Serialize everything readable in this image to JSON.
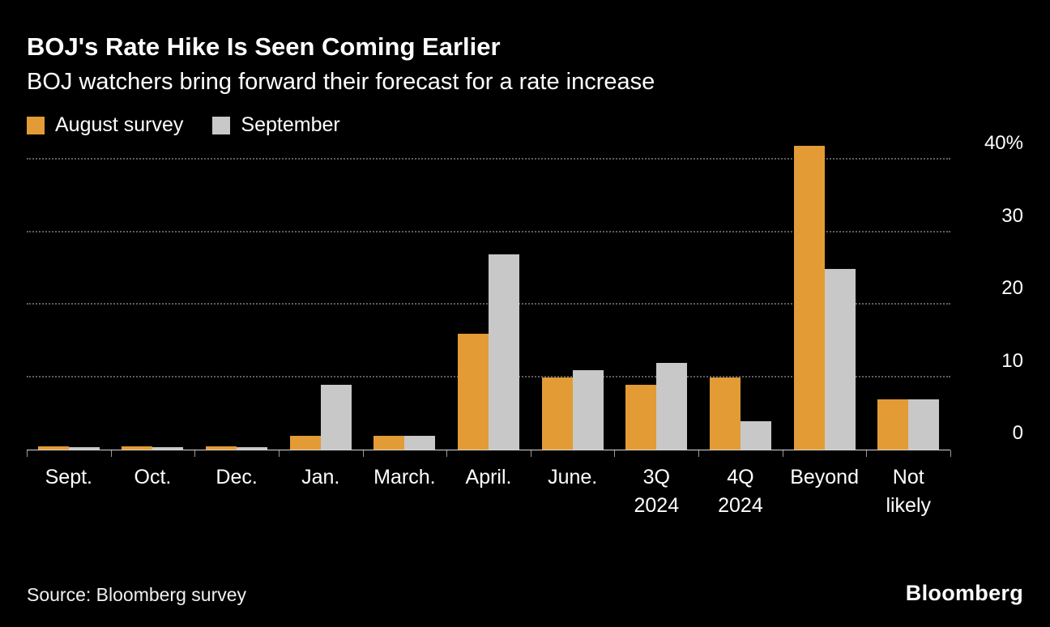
{
  "header": {
    "title": "BOJ's Rate Hike Is Seen Coming Earlier",
    "subtitle": "BOJ watchers bring forward their forecast for a rate increase"
  },
  "legend": [
    {
      "label": "August survey",
      "color": "#E39B35"
    },
    {
      "label": "September",
      "color": "#C8C8C8"
    }
  ],
  "chart_data": {
    "type": "bar",
    "title": "BOJ's Rate Hike Is Seen Coming Earlier",
    "subtitle": "BOJ watchers bring forward their forecast for a rate increase",
    "categories": [
      "Sept.",
      "Oct.",
      "Dec.",
      "Jan.",
      "March.",
      "April.",
      "June.",
      "3Q\n2024",
      "4Q\n2024",
      "Beyond",
      "Not\nlikely"
    ],
    "series": [
      {
        "name": "August survey",
        "color": "#E39B35",
        "values": [
          0.5,
          0.5,
          0.5,
          2,
          2,
          16,
          10,
          9,
          10,
          42,
          7
        ]
      },
      {
        "name": "September",
        "color": "#C8C8C8",
        "values": [
          0.4,
          0.4,
          0.4,
          9,
          2,
          27,
          11,
          12,
          4,
          25,
          7
        ]
      }
    ],
    "xlabel": "",
    "ylabel": "",
    "ylim": [
      0,
      40
    ],
    "yticks": [
      0,
      10,
      20,
      30,
      40
    ],
    "ytick_labels": [
      "0",
      "10",
      "20",
      "30",
      "40%"
    ],
    "grid": "dotted horizontal",
    "legend_position": "top-left",
    "yaxis_side": "right"
  },
  "footer": {
    "source": "Source: Bloomberg survey",
    "logo": "Bloomberg"
  }
}
